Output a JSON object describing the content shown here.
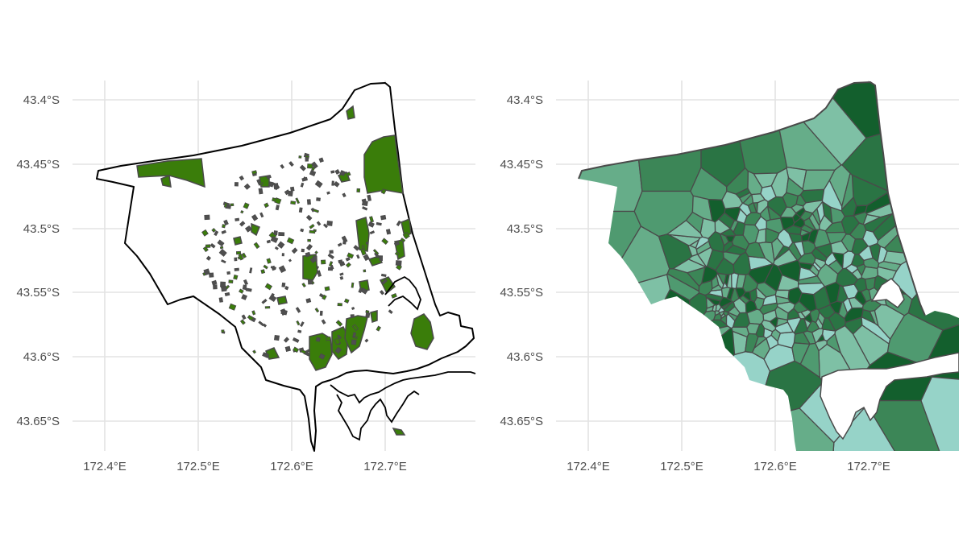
{
  "figure": {
    "panels": [
      {
        "id": "left",
        "y_ticks": [
          "43.4°S",
          "43.45°S",
          "43.5°S",
          "43.55°S",
          "43.6°S",
          "43.65°S"
        ],
        "x_ticks": [
          "172.4°E",
          "172.5°E",
          "172.6°E",
          "172.7°E"
        ]
      },
      {
        "id": "right",
        "y_ticks": [
          "43.4°S",
          "43.45°S",
          "43.5°S",
          "43.55°S",
          "43.6°S",
          "43.65°S"
        ],
        "x_ticks": [
          "172.4°E",
          "172.5°E",
          "172.6°E",
          "172.7°E"
        ]
      }
    ]
  },
  "map_data": {
    "type": "map",
    "region_bounds": {
      "lon": [
        172.39,
        172.79
      ],
      "lat": [
        -43.675,
        -43.39
      ]
    },
    "lon_ticks": [
      172.4,
      172.5,
      172.6,
      172.7
    ],
    "lat_ticks": [
      -43.4,
      -43.45,
      -43.5,
      -43.55,
      -43.6,
      -43.65
    ],
    "left_panel": {
      "layer": "green space polygons inside city boundary",
      "fill": "#3a7d0a",
      "outline": "#4a4a4a",
      "boundary_stroke": "#000000"
    },
    "right_panel": {
      "layer": "voronoi cells shaded by value",
      "palette": [
        "#96d3c8",
        "#7ec0a5",
        "#66ad89",
        "#4f9a70",
        "#3c8657",
        "#2a7444",
        "#135f2d"
      ],
      "cell_stroke": "#4a4a4a"
    },
    "grid": true
  }
}
